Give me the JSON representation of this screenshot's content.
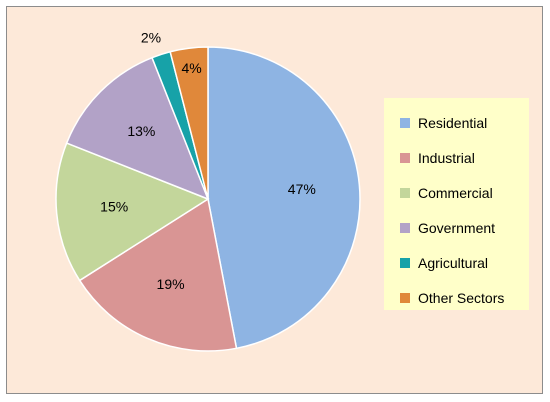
{
  "chart_data": {
    "type": "pie",
    "categories": [
      "Residential",
      "Industrial",
      "Commercial",
      "Government",
      "Agricultural",
      "Other Sectors"
    ],
    "values": [
      47,
      19,
      15,
      13,
      2,
      4
    ],
    "labels": [
      "47%",
      "19%",
      "15%",
      "13%",
      "2%",
      "4%"
    ],
    "colors": [
      "#8eb4e3",
      "#d99594",
      "#c3d69b",
      "#b2a2c7",
      "#17a2a8",
      "#e0883a"
    ],
    "start": "12 o'clock",
    "direction": "clockwise",
    "legend_position": "right",
    "background": "#fde9d9",
    "legend_background": "#ffffc9"
  }
}
